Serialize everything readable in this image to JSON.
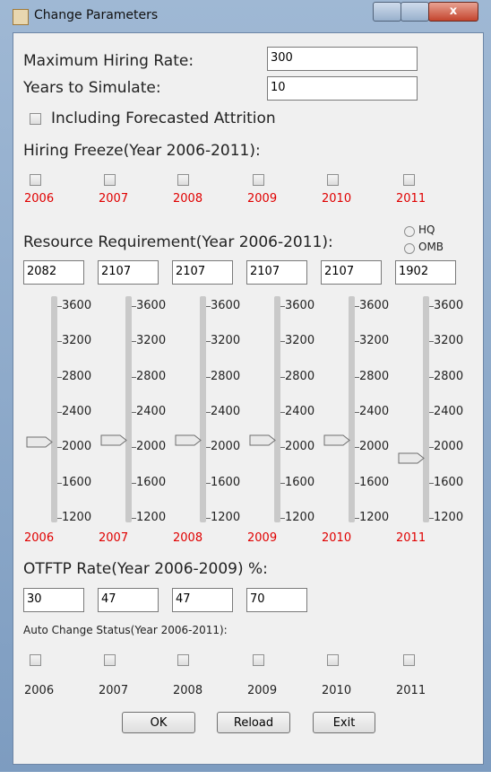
{
  "window": {
    "title": "Change Parameters"
  },
  "fields": [
    {
      "label": "Maximum Hiring Rate:",
      "value": "300"
    },
    {
      "label": "Years to Simulate:",
      "value": "10"
    }
  ],
  "attrition": {
    "label": "Including Forecasted Attrition"
  },
  "hiring_freeze": {
    "title": "Hiring Freeze(Year 2006-2011):",
    "years": [
      "2006",
      "2007",
      "2008",
      "2009",
      "2010",
      "2011"
    ]
  },
  "resource": {
    "title": "Resource Requirement(Year 2006-2011):",
    "radios": [
      "HQ",
      "OMB"
    ],
    "values": [
      2082,
      2107,
      2107,
      2107,
      2107,
      1902
    ],
    "slider_lim": [
      1200,
      3600
    ],
    "slider_ticks": [
      3600,
      3200,
      2800,
      2400,
      2000,
      1600,
      1200
    ],
    "years": [
      "2006",
      "2007",
      "2008",
      "2009",
      "2010",
      "2011"
    ]
  },
  "otftp": {
    "title": "OTFTP Rate(Year 2006-2009) %:",
    "values": [
      30,
      47,
      47,
      70
    ]
  },
  "auto_change": {
    "title": "Auto Change Status(Year 2006-2011):",
    "years": [
      "2006",
      "2007",
      "2008",
      "2009",
      "2010",
      "2011"
    ]
  },
  "buttons": [
    "OK",
    "Reload",
    "Exit"
  ]
}
